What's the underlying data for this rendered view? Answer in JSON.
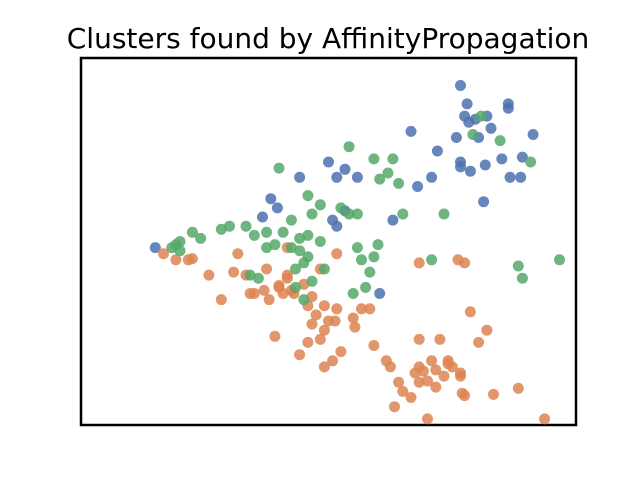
{
  "chart_data": {
    "type": "scatter",
    "title": "Clusters found by AffinityPropagation",
    "xlabel": "",
    "ylabel": "",
    "xlim": [
      -3.0,
      3.0
    ],
    "ylim": [
      -3.0,
      3.0
    ],
    "grid": false,
    "legend": "none",
    "ticks": "none",
    "series": [
      {
        "color": "#4c72b0",
        "points": [
          [
            1.6,
            2.55
          ],
          [
            1.68,
            2.25
          ],
          [
            1.65,
            2.05
          ],
          [
            1.7,
            1.95
          ],
          [
            1.78,
            2.0
          ],
          [
            1.92,
            2.05
          ],
          [
            1.97,
            1.85
          ],
          [
            2.18,
            2.25
          ],
          [
            2.18,
            2.18
          ],
          [
            2.48,
            1.75
          ],
          [
            1.0,
            1.8
          ],
          [
            1.55,
            1.7
          ],
          [
            1.32,
            1.48
          ],
          [
            1.6,
            1.3
          ],
          [
            1.6,
            1.22
          ],
          [
            1.72,
            1.15
          ],
          [
            2.1,
            1.35
          ],
          [
            1.82,
            1.7
          ],
          [
            2.2,
            1.05
          ],
          [
            2.33,
            1.05
          ],
          [
            2.35,
            1.38
          ],
          [
            1.9,
            1.25
          ],
          [
            0.0,
            1.3
          ],
          [
            0.2,
            1.18
          ],
          [
            0.1,
            1.05
          ],
          [
            -0.35,
            1.05
          ],
          [
            1.25,
            1.05
          ],
          [
            0.35,
            1.05
          ],
          [
            1.08,
            0.9
          ],
          [
            -0.7,
            0.7
          ],
          [
            -0.62,
            0.55
          ],
          [
            -0.8,
            0.4
          ],
          [
            0.2,
            0.5
          ],
          [
            0.05,
            0.35
          ],
          [
            0.1,
            0.25
          ],
          [
            0.78,
            0.35
          ],
          [
            1.88,
            0.65
          ],
          [
            -2.1,
            -0.1
          ],
          [
            0.62,
            -0.85
          ]
        ]
      },
      {
        "color": "#dd8452",
        "points": [
          [
            -2.0,
            -0.2
          ],
          [
            -1.85,
            -0.3
          ],
          [
            -1.7,
            -0.3
          ],
          [
            -1.65,
            -0.28
          ],
          [
            -0.5,
            -0.1
          ],
          [
            -1.1,
            -0.2
          ],
          [
            -0.5,
            -0.6
          ],
          [
            -0.6,
            -0.72
          ],
          [
            -0.45,
            -0.8
          ],
          [
            -0.55,
            -0.85
          ],
          [
            -0.6,
            -0.75
          ],
          [
            -0.78,
            -0.8
          ],
          [
            -0.72,
            -0.95
          ],
          [
            -0.9,
            -0.85
          ],
          [
            -0.95,
            -0.85
          ],
          [
            -1.3,
            -0.95
          ],
          [
            -0.1,
            -0.45
          ],
          [
            -0.05,
            -1.05
          ],
          [
            0.1,
            -1.1
          ],
          [
            0.08,
            -1.3
          ],
          [
            -0.2,
            -0.9
          ],
          [
            -0.25,
            -1.05
          ],
          [
            -0.15,
            -1.2
          ],
          [
            -0.2,
            -1.35
          ],
          [
            -0.05,
            -1.45
          ],
          [
            -0.1,
            -1.6
          ],
          [
            -0.25,
            -1.65
          ],
          [
            0.0,
            -1.3
          ],
          [
            0.4,
            -1.1
          ],
          [
            0.3,
            -1.25
          ],
          [
            0.5,
            -1.1
          ],
          [
            0.32,
            -1.4
          ],
          [
            0.55,
            -1.7
          ],
          [
            -0.35,
            -1.85
          ],
          [
            0.15,
            -1.8
          ],
          [
            0.05,
            -1.95
          ],
          [
            -0.05,
            -2.05
          ],
          [
            0.7,
            -1.95
          ],
          [
            1.1,
            -1.6
          ],
          [
            0.75,
            -2.05
          ],
          [
            0.85,
            -2.3
          ],
          [
            1.05,
            -2.15
          ],
          [
            1.1,
            -2.05
          ],
          [
            1.15,
            -2.12
          ],
          [
            1.3,
            -2.1
          ],
          [
            1.25,
            -1.95
          ],
          [
            1.1,
            -2.3
          ],
          [
            1.2,
            -2.28
          ],
          [
            1.3,
            -2.38
          ],
          [
            1.4,
            -2.2
          ],
          [
            1.45,
            -2.0
          ],
          [
            1.5,
            -2.05
          ],
          [
            1.6,
            -2.15
          ],
          [
            1.65,
            -2.52
          ],
          [
            1.6,
            -2.2
          ],
          [
            1.45,
            -1.95
          ],
          [
            0.9,
            -2.45
          ],
          [
            1.0,
            -2.55
          ],
          [
            0.8,
            -2.7
          ],
          [
            1.2,
            -2.9
          ],
          [
            1.62,
            -2.48
          ],
          [
            1.82,
            -1.65
          ],
          [
            1.92,
            -1.45
          ],
          [
            1.72,
            -1.15
          ],
          [
            1.35,
            -1.6
          ],
          [
            2.0,
            -2.5
          ],
          [
            2.3,
            -2.4
          ],
          [
            2.62,
            -2.9
          ],
          [
            1.1,
            -0.35
          ],
          [
            1.65,
            -0.35
          ],
          [
            1.57,
            -0.3
          ],
          [
            -0.65,
            -1.55
          ],
          [
            -1.45,
            -0.55
          ],
          [
            -1.15,
            -0.5
          ],
          [
            -1.0,
            -0.55
          ],
          [
            -0.75,
            -0.45
          ],
          [
            -0.5,
            -0.55
          ],
          [
            -0.42,
            -0.85
          ],
          [
            -0.3,
            -0.7
          ],
          [
            0.1,
            -0.2
          ]
        ]
      },
      {
        "color": "#55a868",
        "points": [
          [
            1.85,
            2.05
          ],
          [
            1.75,
            1.75
          ],
          [
            2.08,
            1.65
          ],
          [
            0.25,
            1.55
          ],
          [
            0.55,
            1.35
          ],
          [
            0.78,
            1.35
          ],
          [
            0.72,
            1.12
          ],
          [
            0.62,
            1.02
          ],
          [
            0.85,
            0.95
          ],
          [
            2.45,
            1.3
          ],
          [
            -0.6,
            1.2
          ],
          [
            -0.25,
            0.75
          ],
          [
            -0.1,
            0.6
          ],
          [
            -0.2,
            0.45
          ],
          [
            0.15,
            0.55
          ],
          [
            0.25,
            0.45
          ],
          [
            0.35,
            0.45
          ],
          [
            0.9,
            0.45
          ],
          [
            1.4,
            0.45
          ],
          [
            -0.45,
            0.35
          ],
          [
            -1.0,
            0.25
          ],
          [
            -1.2,
            0.25
          ],
          [
            -0.75,
            0.15
          ],
          [
            -0.55,
            0.15
          ],
          [
            -0.35,
            0.05
          ],
          [
            -0.65,
            -0.05
          ],
          [
            -0.45,
            -0.1
          ],
          [
            -0.35,
            -0.15
          ],
          [
            -0.75,
            -0.1
          ],
          [
            -0.9,
            0.1
          ],
          [
            -1.3,
            0.2
          ],
          [
            -1.55,
            0.05
          ],
          [
            -1.65,
            0.15
          ],
          [
            -1.8,
            0.0
          ],
          [
            -1.85,
            -0.05
          ],
          [
            -1.8,
            -0.15
          ],
          [
            -1.9,
            -0.1
          ],
          [
            -0.1,
            0.0
          ],
          [
            0.35,
            -0.1
          ],
          [
            0.4,
            -0.3
          ],
          [
            0.55,
            -0.25
          ],
          [
            0.5,
            -0.5
          ],
          [
            0.45,
            -0.75
          ],
          [
            0.3,
            -0.85
          ],
          [
            1.25,
            -0.3
          ],
          [
            -0.25,
            -0.25
          ],
          [
            -0.3,
            -0.35
          ],
          [
            -0.4,
            -0.45
          ],
          [
            -0.2,
            -0.65
          ],
          [
            -0.3,
            -0.95
          ],
          [
            -0.95,
            -0.55
          ],
          [
            -0.85,
            -0.6
          ],
          [
            -0.4,
            -0.75
          ],
          [
            2.3,
            -0.4
          ],
          [
            2.35,
            -0.6
          ],
          [
            2.8,
            -0.3
          ],
          [
            -0.05,
            -0.45
          ],
          [
            0.6,
            -0.05
          ],
          [
            -0.25,
            0.1
          ]
        ]
      }
    ]
  }
}
